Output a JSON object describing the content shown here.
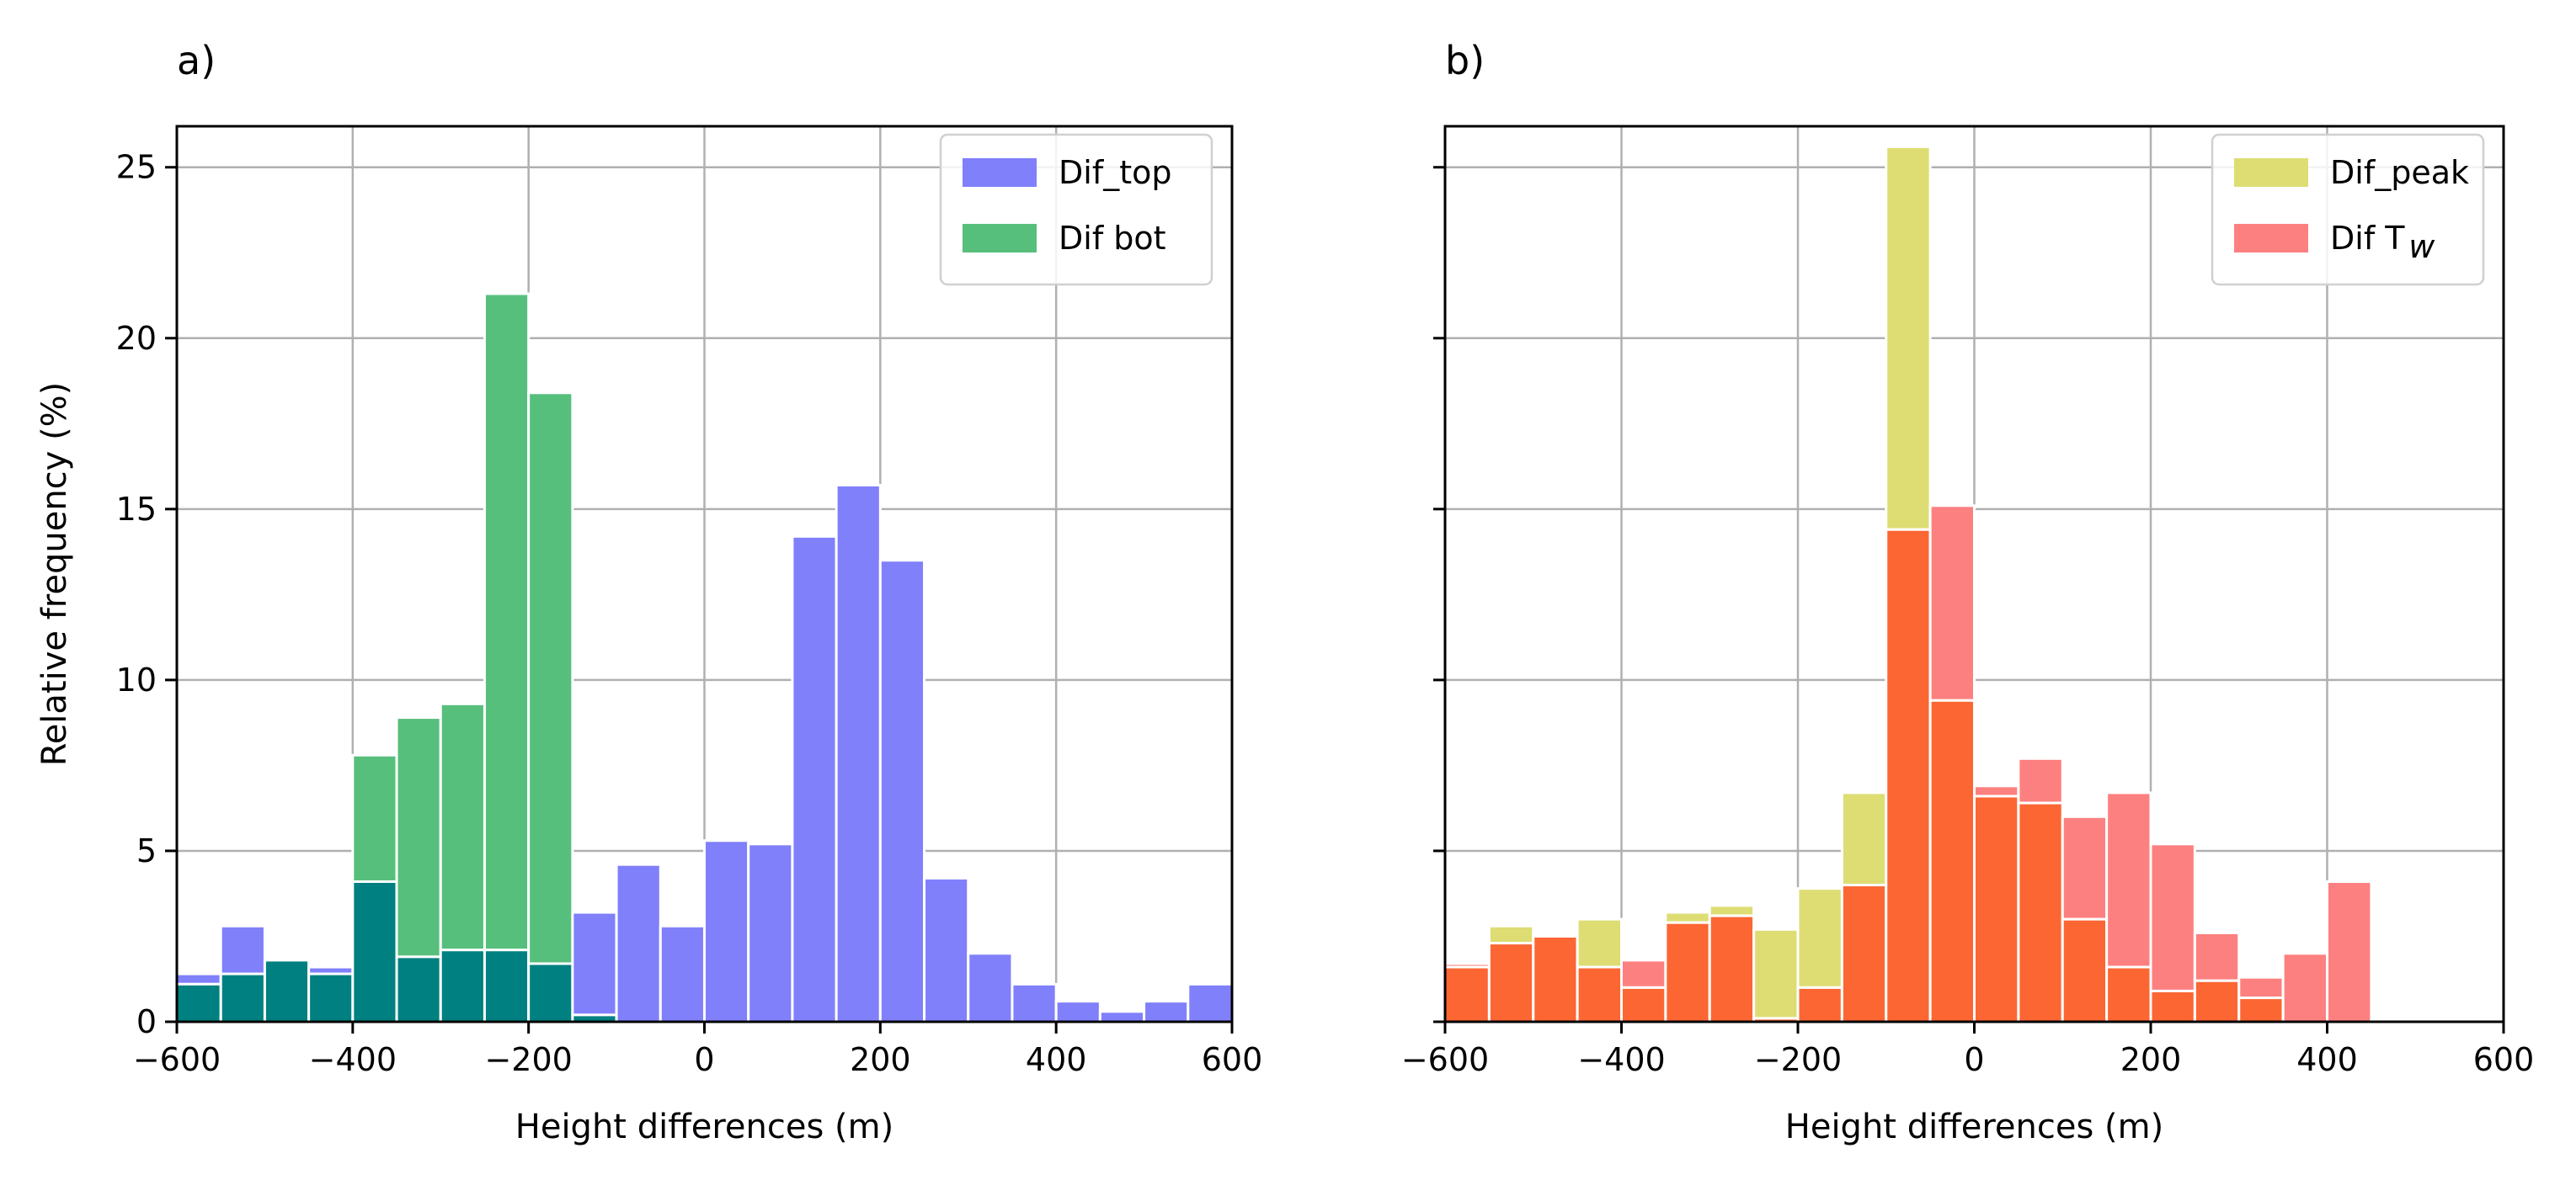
{
  "chart_data": [
    {
      "type": "bar",
      "panel_label": "a)",
      "xlabel": "Height differences (m)",
      "ylabel": "Relative frequency (%)",
      "xlim": [
        -600,
        600
      ],
      "ylim": [
        0,
        26.2
      ],
      "xticks": [
        "−600",
        "−400",
        "−200",
        "0",
        "200",
        "400",
        "600"
      ],
      "xtick_values": [
        -600,
        -400,
        -200,
        0,
        200,
        400,
        600
      ],
      "yticks": [
        "0",
        "5",
        "10",
        "15",
        "20",
        "25"
      ],
      "ytick_values": [
        0,
        5,
        10,
        15,
        20,
        25
      ],
      "grid": true,
      "legend_position": "top-right",
      "bin_width": 50,
      "bin_starts": [
        -600,
        -550,
        -500,
        -450,
        -400,
        -350,
        -300,
        -250,
        -200,
        -150,
        -100,
        -50,
        0,
        50,
        100,
        150,
        200,
        250,
        300,
        350,
        400,
        450,
        500,
        550
      ],
      "series": [
        {
          "name": "Dif_top",
          "color": "#8080fb",
          "values": [
            1.4,
            2.8,
            1.8,
            1.6,
            4.1,
            1.9,
            2.1,
            2.1,
            1.7,
            3.2,
            4.6,
            2.8,
            5.3,
            5.2,
            14.2,
            15.7,
            13.5,
            4.2,
            2.0,
            1.1,
            0.6,
            0.3,
            0.6,
            1.1
          ]
        },
        {
          "name": "Dif bot",
          "color": "#57bf7c",
          "values": [
            1.1,
            1.4,
            1.8,
            1.4,
            7.8,
            8.9,
            9.3,
            21.3,
            18.4,
            0.2,
            0,
            0,
            0,
            0,
            0,
            0,
            0,
            0,
            0,
            0,
            0,
            0,
            0,
            0
          ]
        }
      ],
      "overlap_color": "#008080"
    },
    {
      "type": "bar",
      "panel_label": "b)",
      "xlabel": "Height differences (m)",
      "ylabel": "",
      "xlim": [
        -600,
        600
      ],
      "ylim": [
        0,
        26.2
      ],
      "xticks": [
        "−600",
        "−400",
        "−200",
        "0",
        "200",
        "400",
        "600"
      ],
      "xtick_values": [
        -600,
        -400,
        -200,
        0,
        200,
        400,
        600
      ],
      "yticks": [
        "0",
        "5",
        "10",
        "15",
        "20",
        "25"
      ],
      "ytick_values": [
        0,
        5,
        10,
        15,
        20,
        25
      ],
      "grid": true,
      "legend_position": "top-right",
      "bin_width": 50,
      "bin_starts": [
        -600,
        -550,
        -500,
        -450,
        -400,
        -350,
        -300,
        -250,
        -200,
        -150,
        -100,
        -50,
        0,
        50,
        100,
        150,
        200,
        250,
        300,
        350,
        400,
        450,
        500,
        550
      ],
      "series": [
        {
          "name": "Dif_peak",
          "color": "#dddd74",
          "values": [
            1.6,
            2.8,
            2.5,
            3.0,
            1.0,
            3.2,
            3.4,
            2.7,
            3.9,
            6.7,
            25.6,
            9.4,
            6.6,
            6.4,
            3.0,
            1.6,
            0.9,
            1.2,
            0.7,
            0,
            0,
            0,
            0,
            0
          ]
        },
        {
          "name": "Dif T",
          "name_subscript": "w",
          "color": "#fd8080",
          "values": [
            1.7,
            2.3,
            2.5,
            1.6,
            1.8,
            2.9,
            3.1,
            0.1,
            1.0,
            4.0,
            14.4,
            15.1,
            6.9,
            7.7,
            6.0,
            6.7,
            5.2,
            2.6,
            1.3,
            2.0,
            4.1,
            0.05,
            0,
            0
          ]
        }
      ],
      "overlap_color": "#fc6633"
    }
  ]
}
